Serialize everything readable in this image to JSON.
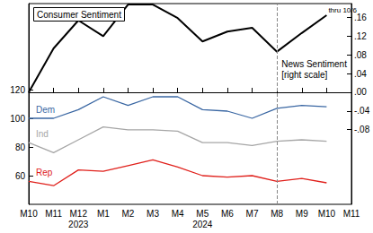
{
  "chart_data": {
    "type": "line",
    "title": "Consumer Sentiment",
    "categories": [
      "M10",
      "M11",
      "M12",
      "M1",
      "M2",
      "M3",
      "M4",
      "M5",
      "M6",
      "M7",
      "M8",
      "M9",
      "M10",
      "M11"
    ],
    "series": [
      {
        "name": "Dem",
        "color": "#3a67a3",
        "values": [
          100,
          100,
          106,
          115,
          109,
          115,
          115,
          106,
          105,
          100,
          107,
          109,
          108,
          null
        ]
      },
      {
        "name": "Ind",
        "color": "#a6a6a6",
        "values": [
          83,
          76,
          85,
          94,
          92,
          92,
          91,
          83,
          83,
          81,
          84,
          85,
          84,
          null
        ]
      },
      {
        "name": "Rep",
        "color": "#e0201b",
        "values": [
          56,
          53,
          64,
          63,
          67,
          71,
          66,
          60,
          59,
          60,
          56,
          58,
          55,
          null
        ]
      },
      {
        "name": "News Sentiment\n[right scale]",
        "color": "#000000",
        "axis": "y2",
        "values": [
          0.0,
          0.094,
          0.154,
          0.12,
          0.188,
          0.188,
          0.159,
          0.109,
          0.13,
          0.138,
          0.087,
          0.127,
          0.165,
          null
        ]
      }
    ],
    "ylim": [
      40,
      180
    ],
    "yticks": [
      60,
      80,
      100,
      120
    ],
    "y2lim": [
      -0.24,
      0.19
    ],
    "y2ticks": [
      {
        "value": 0.16,
        "label": ".16"
      },
      {
        "value": 0.12,
        "label": ".12"
      },
      {
        "value": 0.08,
        "label": ".08"
      },
      {
        "value": 0.04,
        "label": ".04"
      },
      {
        "value": 0.0,
        "label": ".00"
      },
      {
        "value": -0.04,
        "label": "-.04"
      },
      {
        "value": -0.08,
        "label": "-.08"
      }
    ],
    "annotations": [
      {
        "text": "2023",
        "x": "M12"
      },
      {
        "text": "2024",
        "x": "M5"
      },
      {
        "text": "thru 10/6"
      }
    ],
    "reference_lines": [
      {
        "x": "M8",
        "line_style": "dashed"
      }
    ],
    "grid": false
  }
}
